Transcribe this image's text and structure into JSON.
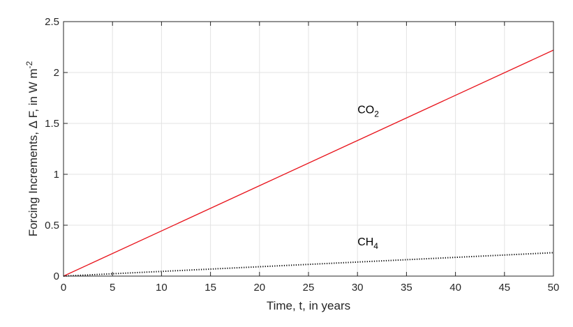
{
  "chart_data": {
    "type": "line",
    "title": "",
    "xlabel": "Time, t,  in years",
    "ylabel": {
      "main": "Forcing Increments,  Δ F,   in W m",
      "superscript": "-2"
    },
    "xlim": [
      0,
      50
    ],
    "ylim": [
      0,
      2.5
    ],
    "xticks": [
      0,
      5,
      10,
      15,
      20,
      25,
      30,
      35,
      40,
      45,
      50
    ],
    "xtick_labels": [
      "0",
      "5",
      "10",
      "15",
      "20",
      "25",
      "30",
      "35",
      "40",
      "45",
      "50"
    ],
    "yticks": [
      0,
      0.5,
      1,
      1.5,
      2,
      2.5
    ],
    "ytick_labels": [
      "0",
      "0.5",
      "1",
      "1.5",
      "2",
      "2.5"
    ],
    "grid": true,
    "series": [
      {
        "label_base": "CO",
        "label_sub": "2",
        "color": "#e8131b",
        "style": "solid",
        "x": [
          0,
          50
        ],
        "y": [
          0,
          2.22
        ],
        "label_at": [
          30,
          1.6
        ]
      },
      {
        "label_base": "CH",
        "label_sub": "4",
        "color": "#000000",
        "style": "dotted",
        "x": [
          0,
          50
        ],
        "y": [
          0,
          0.23
        ],
        "label_at": [
          30,
          0.3
        ]
      }
    ]
  }
}
